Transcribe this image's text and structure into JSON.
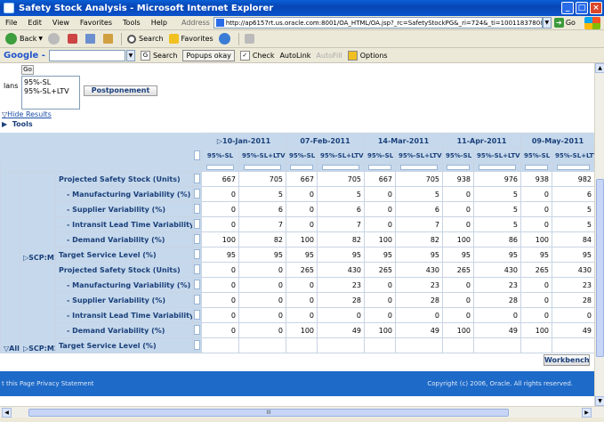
{
  "window": {
    "title": "Safety Stock Analysis - Microsoft Internet Explorer",
    "min": "_",
    "max": "□",
    "close": "×"
  },
  "menu": [
    "File",
    "Edit",
    "View",
    "Favorites",
    "Tools",
    "Help"
  ],
  "address": {
    "label": "Address",
    "url": "http://ap6157rt.us.oracle.com:8001/OA_HTML/OA.jsp?_rc=SafetyStockPG&_ri=724&_ti=1001183780&retainAM=",
    "go": "Go"
  },
  "toolbar": {
    "back": "Back",
    "search": "Search",
    "favorites": "Favorites"
  },
  "googlebar": {
    "logo": "Google -",
    "search": "Search",
    "popups": "Popups okay",
    "check": "Check",
    "autolink": "AutoLink",
    "autofill": "AutoFill",
    "options": "Options"
  },
  "page": {
    "go_button": "Go",
    "plans_label": "lans",
    "plans_list": [
      "95%-SL",
      "95%-SL+LTV"
    ],
    "postponement_button": "Postponement",
    "hide_results": "Hide Results",
    "tools": "Tools",
    "workbench_button": "Workbench",
    "footer_left": "t this Page     Privacy Statement",
    "footer_right": "Copyright (c) 2006, Oracle. All rights reserved."
  },
  "grid": {
    "dates": [
      "10-Jan-2011",
      "07-Feb-2011",
      "14-Mar-2011",
      "11-Apr-2011",
      "09-May-2011"
    ],
    "plan_cols": [
      "95%-SL",
      "95%-SL+LTV"
    ],
    "level_all": "All",
    "groups": [
      {
        "level": "SCP:M1",
        "rows": [
          {
            "measure": "Projected Safety Stock (Units)",
            "indent": false,
            "values": [
              "667",
              "705",
              "667",
              "705",
              "667",
              "705",
              "938",
              "976",
              "938",
              "982"
            ]
          },
          {
            "measure": "- Manufacturing Variability (%)",
            "indent": true,
            "values": [
              "0",
              "5",
              "0",
              "5",
              "0",
              "5",
              "0",
              "5",
              "0",
              "6"
            ]
          },
          {
            "measure": "- Supplier Variability (%)",
            "indent": true,
            "values": [
              "0",
              "6",
              "0",
              "6",
              "0",
              "6",
              "0",
              "5",
              "0",
              "5"
            ]
          },
          {
            "measure": "- Intransit Lead Time Variability (%)",
            "indent": true,
            "values": [
              "0",
              "7",
              "0",
              "7",
              "0",
              "7",
              "0",
              "5",
              "0",
              "5"
            ]
          },
          {
            "measure": "- Demand Variability (%)",
            "indent": true,
            "values": [
              "100",
              "82",
              "100",
              "82",
              "100",
              "82",
              "100",
              "86",
              "100",
              "84"
            ]
          },
          {
            "measure": "Target Service Level (%)",
            "indent": false,
            "values": [
              "95",
              "95",
              "95",
              "95",
              "95",
              "95",
              "95",
              "95",
              "95",
              "95"
            ]
          }
        ]
      },
      {
        "level": "SCP:M2",
        "rows": [
          {
            "measure": "Projected Safety Stock (Units)",
            "indent": false,
            "values": [
              "0",
              "0",
              "265",
              "430",
              "265",
              "430",
              "265",
              "430",
              "265",
              "430"
            ]
          },
          {
            "measure": "- Manufacturing Variability (%)",
            "indent": true,
            "values": [
              "0",
              "0",
              "0",
              "23",
              "0",
              "23",
              "0",
              "23",
              "0",
              "23"
            ]
          },
          {
            "measure": "- Supplier Variability (%)",
            "indent": true,
            "values": [
              "0",
              "0",
              "0",
              "28",
              "0",
              "28",
              "0",
              "28",
              "0",
              "28"
            ]
          },
          {
            "measure": "- Intransit Lead Time Variability (%)",
            "indent": true,
            "values": [
              "0",
              "0",
              "0",
              "0",
              "0",
              "0",
              "0",
              "0",
              "0",
              "0"
            ]
          },
          {
            "measure": "- Demand Variability (%)",
            "indent": true,
            "values": [
              "0",
              "0",
              "100",
              "49",
              "100",
              "49",
              "100",
              "49",
              "100",
              "49"
            ]
          },
          {
            "measure": "Target Service Level (%)",
            "indent": false,
            "values": [
              "",
              "",
              "",
              "",
              "",
              "",
              "",
              "",
              "",
              ""
            ]
          }
        ]
      }
    ]
  },
  "scroll": {
    "hthumb": "III"
  }
}
